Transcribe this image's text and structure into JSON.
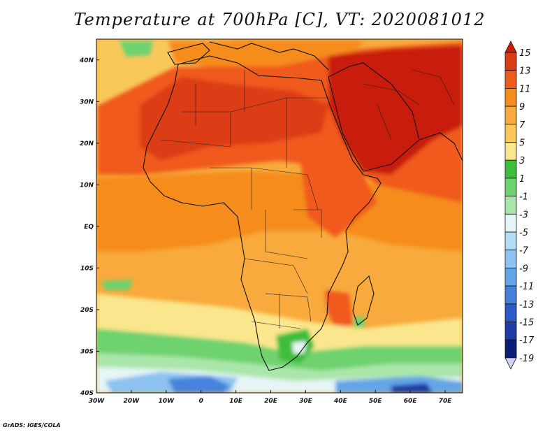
{
  "title": "Temperature at 700hPa [C], VT: 2020081012",
  "credit": "GrADS: IGES/COLA",
  "axes": {
    "x_ticks": [
      {
        "label": "30W",
        "lon": -30
      },
      {
        "label": "20W",
        "lon": -20
      },
      {
        "label": "10W",
        "lon": -10
      },
      {
        "label": "0",
        "lon": 0
      },
      {
        "label": "10E",
        "lon": 10
      },
      {
        "label": "20E",
        "lon": 20
      },
      {
        "label": "30E",
        "lon": 30
      },
      {
        "label": "40E",
        "lon": 40
      },
      {
        "label": "50E",
        "lon": 50
      },
      {
        "label": "60E",
        "lon": 60
      },
      {
        "label": "70E",
        "lon": 70
      }
    ],
    "y_ticks": [
      {
        "label": "40N",
        "lat": 40
      },
      {
        "label": "30N",
        "lat": 30
      },
      {
        "label": "20N",
        "lat": 20
      },
      {
        "label": "10N",
        "lat": 10
      },
      {
        "label": "EQ",
        "lat": 0
      },
      {
        "label": "10S",
        "lat": -10
      },
      {
        "label": "20S",
        "lat": -20
      },
      {
        "label": "30S",
        "lat": -30
      },
      {
        "label": "40S",
        "lat": -40
      }
    ],
    "lon_range": [
      -30,
      75
    ],
    "lat_range": [
      -40,
      45
    ]
  },
  "colorbar": {
    "labels": [
      "15",
      "13",
      "11",
      "9",
      "7",
      "5",
      "3",
      "1",
      "-1",
      "-3",
      "-5",
      "-7",
      "-9",
      "-11",
      "-13",
      "-15",
      "-17",
      "-19"
    ],
    "colors": {
      "above_15": "#c81e0a",
      "13_15": "#dc3c14",
      "11_13": "#f05a1e",
      "9_11": "#f58c1e",
      "7_9": "#f8aa3c",
      "5_7": "#fac85a",
      "3_5": "#fae68c",
      "1_3": "#3cbe3c",
      "m1_1": "#6ed26e",
      "m3_m1": "#aae6aa",
      "m5_m3": "#e6f5f5",
      "m7_m5": "#b4dcf5",
      "m9_m7": "#8cc3f0",
      "m11_m9": "#64a5e6",
      "m13_m11": "#4682dc",
      "m15_m13": "#2d5ac8",
      "m17_m15": "#1e3ca5",
      "m19_m17": "#0a1e78",
      "below_m19": "#d2d2f5"
    }
  },
  "field": {
    "regions": [
      {
        "name": "sahara-hot-core",
        "band": "13_15"
      },
      {
        "name": "arabia-hot-core",
        "band": "above_15"
      },
      {
        "name": "iran-hot-core",
        "band": "above_15"
      },
      {
        "name": "tropical-belt",
        "band": "9_11"
      },
      {
        "name": "southern-ocean-cold",
        "band": "m5_m3"
      }
    ]
  }
}
